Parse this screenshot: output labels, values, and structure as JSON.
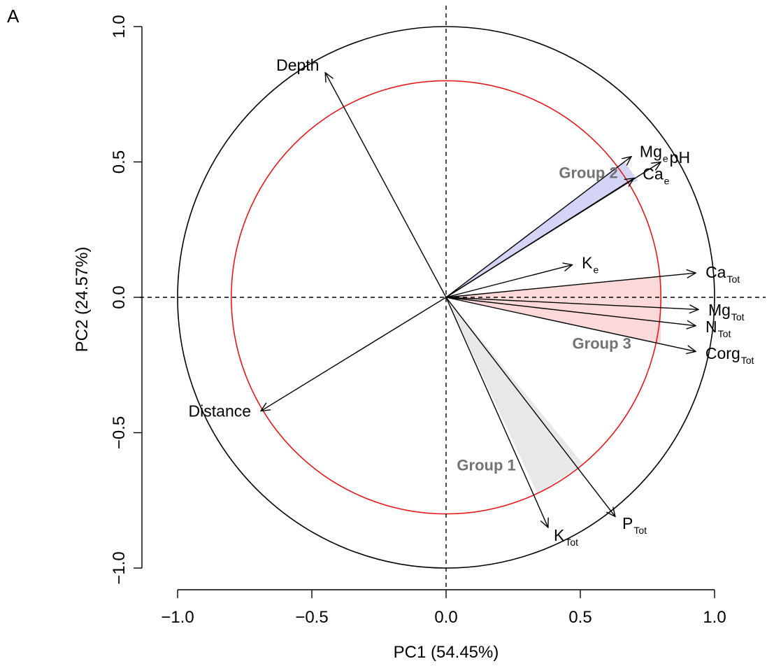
{
  "panel_label": "A",
  "chart_data": {
    "type": "scatter",
    "subtype": "pca-correlation-circle",
    "xlabel": "PC1 (54.45%)",
    "ylabel": "PC2 (24.57%)",
    "xlim": [
      -1.0,
      1.0
    ],
    "ylim": [
      -1.0,
      1.0
    ],
    "x_ticks": [
      -1.0,
      -0.5,
      0.0,
      0.5,
      1.0
    ],
    "x_tick_labels": [
      "−1.0",
      "−0.5",
      "0.0",
      "0.5",
      "1.0"
    ],
    "y_ticks": [
      -1.0,
      -0.5,
      0.0,
      0.5,
      1.0
    ],
    "y_tick_labels": [
      "−1.0",
      "−0.5",
      "0.0",
      "0.5",
      "1.0"
    ],
    "reference_lines": {
      "x": 0,
      "y": 0,
      "style": "dashed"
    },
    "circles": [
      {
        "radius": 1.0,
        "color": "#000000"
      },
      {
        "radius": 0.8,
        "color": "#e31a1c"
      }
    ],
    "vectors": [
      {
        "label": "Depth",
        "sub": "",
        "x": -0.45,
        "y": 0.83,
        "label_side": "end"
      },
      {
        "label": "Mg",
        "sub": "e",
        "x": 0.69,
        "y": 0.52,
        "label_side": "end"
      },
      {
        "label": "pH",
        "sub": "",
        "x": 0.8,
        "y": 0.5,
        "label_side": "end"
      },
      {
        "label": "Ca",
        "sub": "e",
        "x": 0.7,
        "y": 0.44,
        "label_side": "end"
      },
      {
        "label": "K",
        "sub": "e",
        "x": 0.47,
        "y": 0.12,
        "label_side": "end"
      },
      {
        "label": "Ca",
        "sub": "Tot",
        "x": 0.93,
        "y": 0.09,
        "label_side": "end"
      },
      {
        "label": "Mg",
        "sub": "Tot",
        "x": 0.94,
        "y": -0.045,
        "label_side": "end"
      },
      {
        "label": "N",
        "sub": "Tot",
        "x": 0.93,
        "y": -0.105,
        "label_side": "end"
      },
      {
        "label": "Corg",
        "sub": "Tot",
        "x": 0.93,
        "y": -0.2,
        "label_side": "end"
      },
      {
        "label": "P",
        "sub": "Tot",
        "x": 0.63,
        "y": -0.81,
        "label_side": "end"
      },
      {
        "label": "K",
        "sub": "Tot",
        "x": 0.38,
        "y": -0.85,
        "label_side": "end"
      },
      {
        "label": "Distance",
        "sub": "",
        "x": -0.69,
        "y": -0.42,
        "label_side": "start"
      }
    ],
    "groups": [
      {
        "label": "Group 1",
        "fill": "#e8e8e8",
        "edge": "#000000",
        "polygon": [
          [
            0,
            0
          ],
          [
            0.51,
            -0.615
          ],
          [
            0.34,
            -0.725
          ]
        ],
        "label_at": [
          0.15,
          -0.64
        ]
      },
      {
        "label": "Group 2",
        "fill": "#d4d4f6",
        "edge": "#000000",
        "polygon": [
          [
            0,
            0
          ],
          [
            0.665,
            0.5
          ],
          [
            0.715,
            0.43
          ],
          [
            0.675,
            0.42
          ]
        ],
        "label_at": [
          0.53,
          0.44
        ]
      },
      {
        "label": "Group 3",
        "fill": "#fcd9d9",
        "edge": "#000000",
        "polygon": [
          [
            0,
            0
          ],
          [
            0.8,
            0.08
          ],
          [
            0.8,
            -0.17
          ]
        ],
        "label_at": [
          0.58,
          -0.19
        ]
      }
    ]
  }
}
